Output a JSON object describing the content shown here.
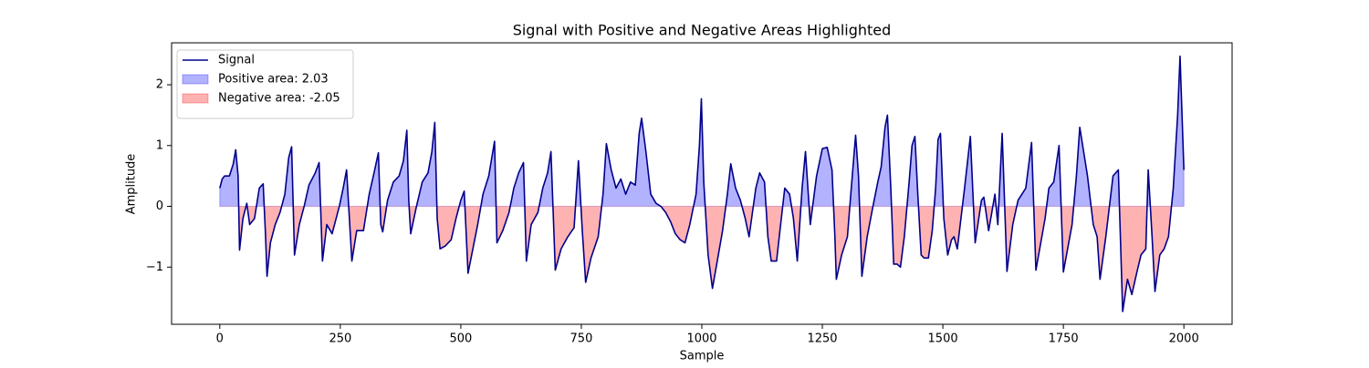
{
  "chart_data": {
    "type": "line",
    "title": "Signal with Positive and Negative Areas Highlighted",
    "x_label": "Sample",
    "y_label": "Amplitude",
    "x": [
      0,
      5,
      10,
      20,
      28,
      33,
      38,
      41,
      48,
      56,
      62,
      72,
      82,
      90,
      95,
      98,
      105,
      115,
      125,
      135,
      143,
      149,
      155,
      165,
      175,
      185,
      198,
      206,
      213,
      222,
      233,
      248,
      256,
      263,
      274,
      284,
      298,
      310,
      320,
      329,
      334,
      338,
      348,
      360,
      372,
      381,
      388,
      392,
      396,
      408,
      420,
      432,
      440,
      446,
      451,
      457,
      468,
      480,
      490,
      500,
      507,
      515,
      525,
      535,
      546,
      558,
      570,
      575,
      587,
      600,
      610,
      620,
      630,
      636,
      646,
      660,
      670,
      680,
      687,
      696,
      708,
      722,
      735,
      744,
      752,
      759,
      770,
      785,
      795,
      802,
      812,
      822,
      832,
      842,
      852,
      862,
      870,
      875,
      884,
      894,
      905,
      915,
      925,
      935,
      945,
      955,
      965,
      975,
      988,
      995,
      999,
      1004,
      1013,
      1022,
      1032,
      1043,
      1053,
      1060,
      1070,
      1080,
      1090,
      1098,
      1105,
      1112,
      1120,
      1130,
      1137,
      1144,
      1155,
      1162,
      1172,
      1182,
      1190,
      1198,
      1208,
      1215,
      1225,
      1238,
      1250,
      1260,
      1270,
      1276,
      1279,
      1290,
      1302,
      1310,
      1319,
      1325,
      1332,
      1343,
      1355,
      1365,
      1372,
      1380,
      1385,
      1392,
      1398,
      1405,
      1412,
      1420,
      1430,
      1436,
      1442,
      1448,
      1455,
      1461,
      1470,
      1478,
      1485,
      1490,
      1495,
      1502,
      1510,
      1518,
      1523,
      1530,
      1545,
      1557,
      1567,
      1580,
      1585,
      1595,
      1608,
      1614,
      1623,
      1633,
      1645,
      1656,
      1672,
      1684,
      1693,
      1712,
      1720,
      1730,
      1741,
      1750,
      1768,
      1777,
      1784,
      1800,
      1812,
      1820,
      1826,
      1838,
      1853,
      1864,
      1873,
      1883,
      1892,
      1902,
      1911,
      1921,
      1926,
      1934,
      1940,
      1950,
      1959,
      1968,
      1978,
      1987,
      1992,
      2000
    ],
    "series": [
      {
        "name": "Signal",
        "color": "#00008b",
        "values": [
          0.3,
          0.45,
          0.5,
          0.5,
          0.7,
          0.93,
          0.5,
          -0.72,
          -0.2,
          0.05,
          -0.3,
          -0.2,
          0.3,
          0.37,
          -0.5,
          -1.15,
          -0.6,
          -0.3,
          -0.1,
          0.2,
          0.8,
          0.98,
          -0.8,
          -0.3,
          0,
          0.35,
          0.55,
          0.72,
          -0.9,
          -0.3,
          -0.45,
          0,
          0.3,
          0.6,
          -0.9,
          -0.4,
          -0.4,
          0.2,
          0.55,
          0.88,
          -0.3,
          -0.42,
          0.1,
          0.4,
          0.5,
          0.75,
          1.25,
          0.1,
          -0.45,
          0,
          0.4,
          0.55,
          0.9,
          1.38,
          -0.2,
          -0.7,
          -0.65,
          -0.55,
          -0.2,
          0.1,
          0.25,
          -1.1,
          -0.7,
          -0.3,
          0.2,
          0.5,
          1.07,
          -0.6,
          -0.4,
          -0.1,
          0.3,
          0.55,
          0.72,
          -0.9,
          -0.3,
          -0.1,
          0.3,
          0.55,
          0.9,
          -1.05,
          -0.7,
          -0.5,
          -0.35,
          0.75,
          -0.4,
          -1.25,
          -0.85,
          -0.5,
          0.2,
          1.03,
          0.6,
          0.3,
          0.45,
          0.2,
          0.4,
          0.35,
          1.2,
          1.45,
          0.9,
          0.2,
          0.05,
          0,
          -0.1,
          -0.25,
          -0.45,
          -0.55,
          -0.6,
          -0.3,
          0.2,
          1.0,
          1.77,
          0.4,
          -0.8,
          -1.35,
          -0.9,
          -0.4,
          0.2,
          0.7,
          0.3,
          0.1,
          -0.2,
          -0.5,
          -0.1,
          0.3,
          0.55,
          0.4,
          -0.5,
          -0.9,
          -0.9,
          -0.4,
          0.3,
          0.2,
          -0.2,
          -0.9,
          0.3,
          0.9,
          -0.3,
          0.5,
          0.95,
          0.97,
          0.6,
          -0.5,
          -1.2,
          -0.8,
          -0.5,
          0.3,
          1.17,
          0.5,
          -1.15,
          -0.5,
          0,
          0.4,
          0.65,
          1.3,
          1.5,
          0.3,
          -0.95,
          -0.95,
          -1.0,
          -0.5,
          0.4,
          1.0,
          1.15,
          0.2,
          -0.8,
          -0.85,
          -0.85,
          -0.4,
          0.3,
          1.1,
          1.2,
          -0.2,
          -0.8,
          -0.55,
          -0.5,
          -0.7,
          0.3,
          1.15,
          -0.6,
          0.1,
          0.15,
          -0.4,
          0.2,
          -0.3,
          1.2,
          -1.07,
          -0.3,
          0.1,
          0.3,
          1.05,
          -1.05,
          -0.2,
          0.3,
          0.4,
          1.0,
          -1.08,
          -0.3,
          0.5,
          1.3,
          0.5,
          -0.3,
          -0.5,
          -1.2,
          -0.5,
          0.5,
          0.6,
          -1.73,
          -1.2,
          -1.45,
          -1.1,
          -0.8,
          -0.7,
          0.6,
          -0.5,
          -1.4,
          -0.8,
          -0.7,
          -0.5,
          0.3,
          1.5,
          2.47,
          0.6
        ]
      }
    ],
    "fills": [
      {
        "name": "Positive area: 2.03",
        "color": "#0000ff",
        "side": "above"
      },
      {
        "name": "Negative area: -2.05",
        "color": "#ff0000",
        "side": "below"
      }
    ],
    "xlim": [
      -100,
      2100
    ],
    "xticks": [
      0,
      250,
      500,
      750,
      1000,
      1250,
      1500,
      1750,
      2000
    ],
    "ylim": [
      -1.94,
      2.69
    ],
    "yticks": [
      {
        "value": -1,
        "label": "−1"
      },
      0,
      1,
      2
    ],
    "legend": "upper left"
  }
}
